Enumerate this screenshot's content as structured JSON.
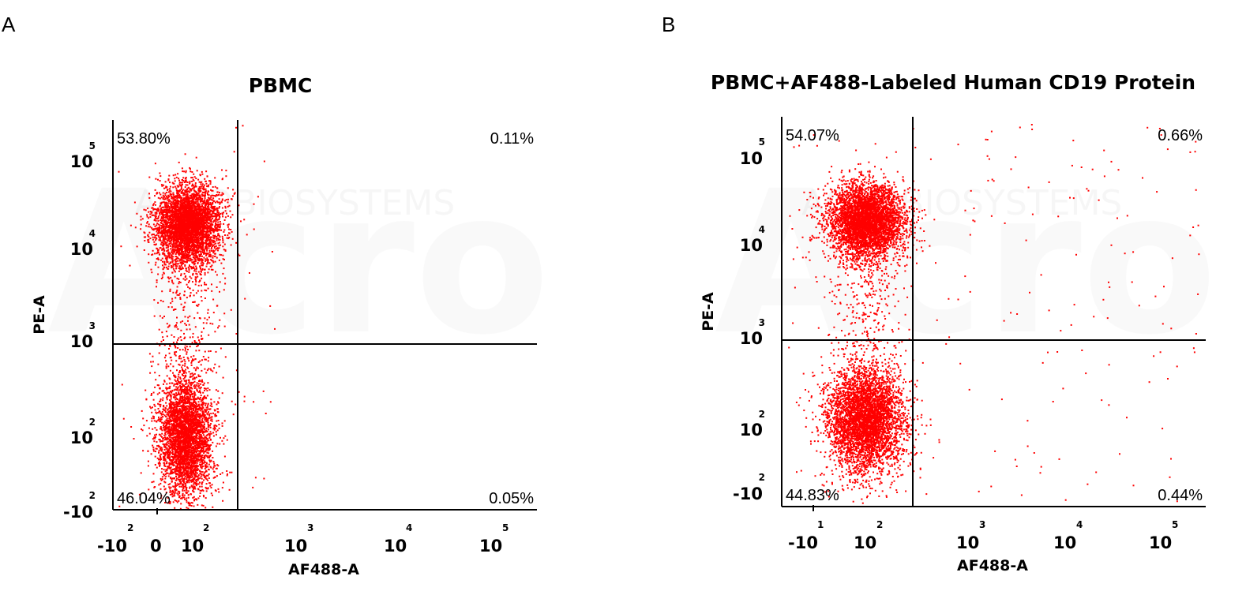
{
  "colors": {
    "dot": "#ff0000",
    "axis": "#000000",
    "background": "#ffffff"
  },
  "chart_data": [
    {
      "type": "scatter",
      "panel_label": "A",
      "title": "PBMC",
      "xlabel": "AF488-A",
      "ylabel": "PE-A",
      "x_scale": "biexponential",
      "y_scale": "biexponential",
      "x_ticks": [
        {
          "base": "-10",
          "exp": "2"
        },
        {
          "base": "0",
          "exp": ""
        },
        {
          "base": "10",
          "exp": "2"
        },
        {
          "base": "10",
          "exp": "3"
        },
        {
          "base": "10",
          "exp": "4"
        },
        {
          "base": "10",
          "exp": "5"
        }
      ],
      "y_ticks": [
        {
          "base": "-10",
          "exp": "2"
        },
        {
          "base": "10",
          "exp": "2"
        },
        {
          "base": "10",
          "exp": "3"
        },
        {
          "base": "10",
          "exp": "4"
        },
        {
          "base": "10",
          "exp": "5"
        }
      ],
      "gate": {
        "x": 300,
        "y": 700
      },
      "quadrants": {
        "UL": "53.80%",
        "UR": "0.11%",
        "LL": "46.04%",
        "LR": "0.05%"
      },
      "clusters": [
        {
          "name": "upper",
          "x_center": 90,
          "y_center": 18000,
          "count": 4200
        },
        {
          "name": "lower",
          "x_center": 85,
          "y_center": 95,
          "count": 3600
        }
      ],
      "watermark": "ACROBIOSYSTEMS"
    },
    {
      "type": "scatter",
      "panel_label": "B",
      "title": "PBMC+AF488-Labeled Human CD19 Protein",
      "xlabel": "AF488-A",
      "ylabel": "PE-A",
      "x_scale": "biexponential",
      "y_scale": "biexponential",
      "x_ticks": [
        {
          "base": "-10",
          "exp": "1"
        },
        {
          "base": "10",
          "exp": "2"
        },
        {
          "base": "10",
          "exp": "3"
        },
        {
          "base": "10",
          "exp": "4"
        },
        {
          "base": "10",
          "exp": "5"
        }
      ],
      "y_ticks": [
        {
          "base": "-10",
          "exp": "2"
        },
        {
          "base": "10",
          "exp": "2"
        },
        {
          "base": "10",
          "exp": "3"
        },
        {
          "base": "10",
          "exp": "4"
        },
        {
          "base": "10",
          "exp": "5"
        }
      ],
      "gate": {
        "x": 300,
        "y": 700
      },
      "quadrants": {
        "UL": "54.07%",
        "UR": "0.66%",
        "LL": "44.83%",
        "LR": "0.44%"
      },
      "clusters": [
        {
          "name": "upper",
          "x_center": 100,
          "y_center": 18000,
          "count": 4200
        },
        {
          "name": "lower",
          "x_center": 100,
          "y_center": 120,
          "count": 4200
        }
      ],
      "watermark": "ACROBIOSYSTEMS"
    }
  ]
}
